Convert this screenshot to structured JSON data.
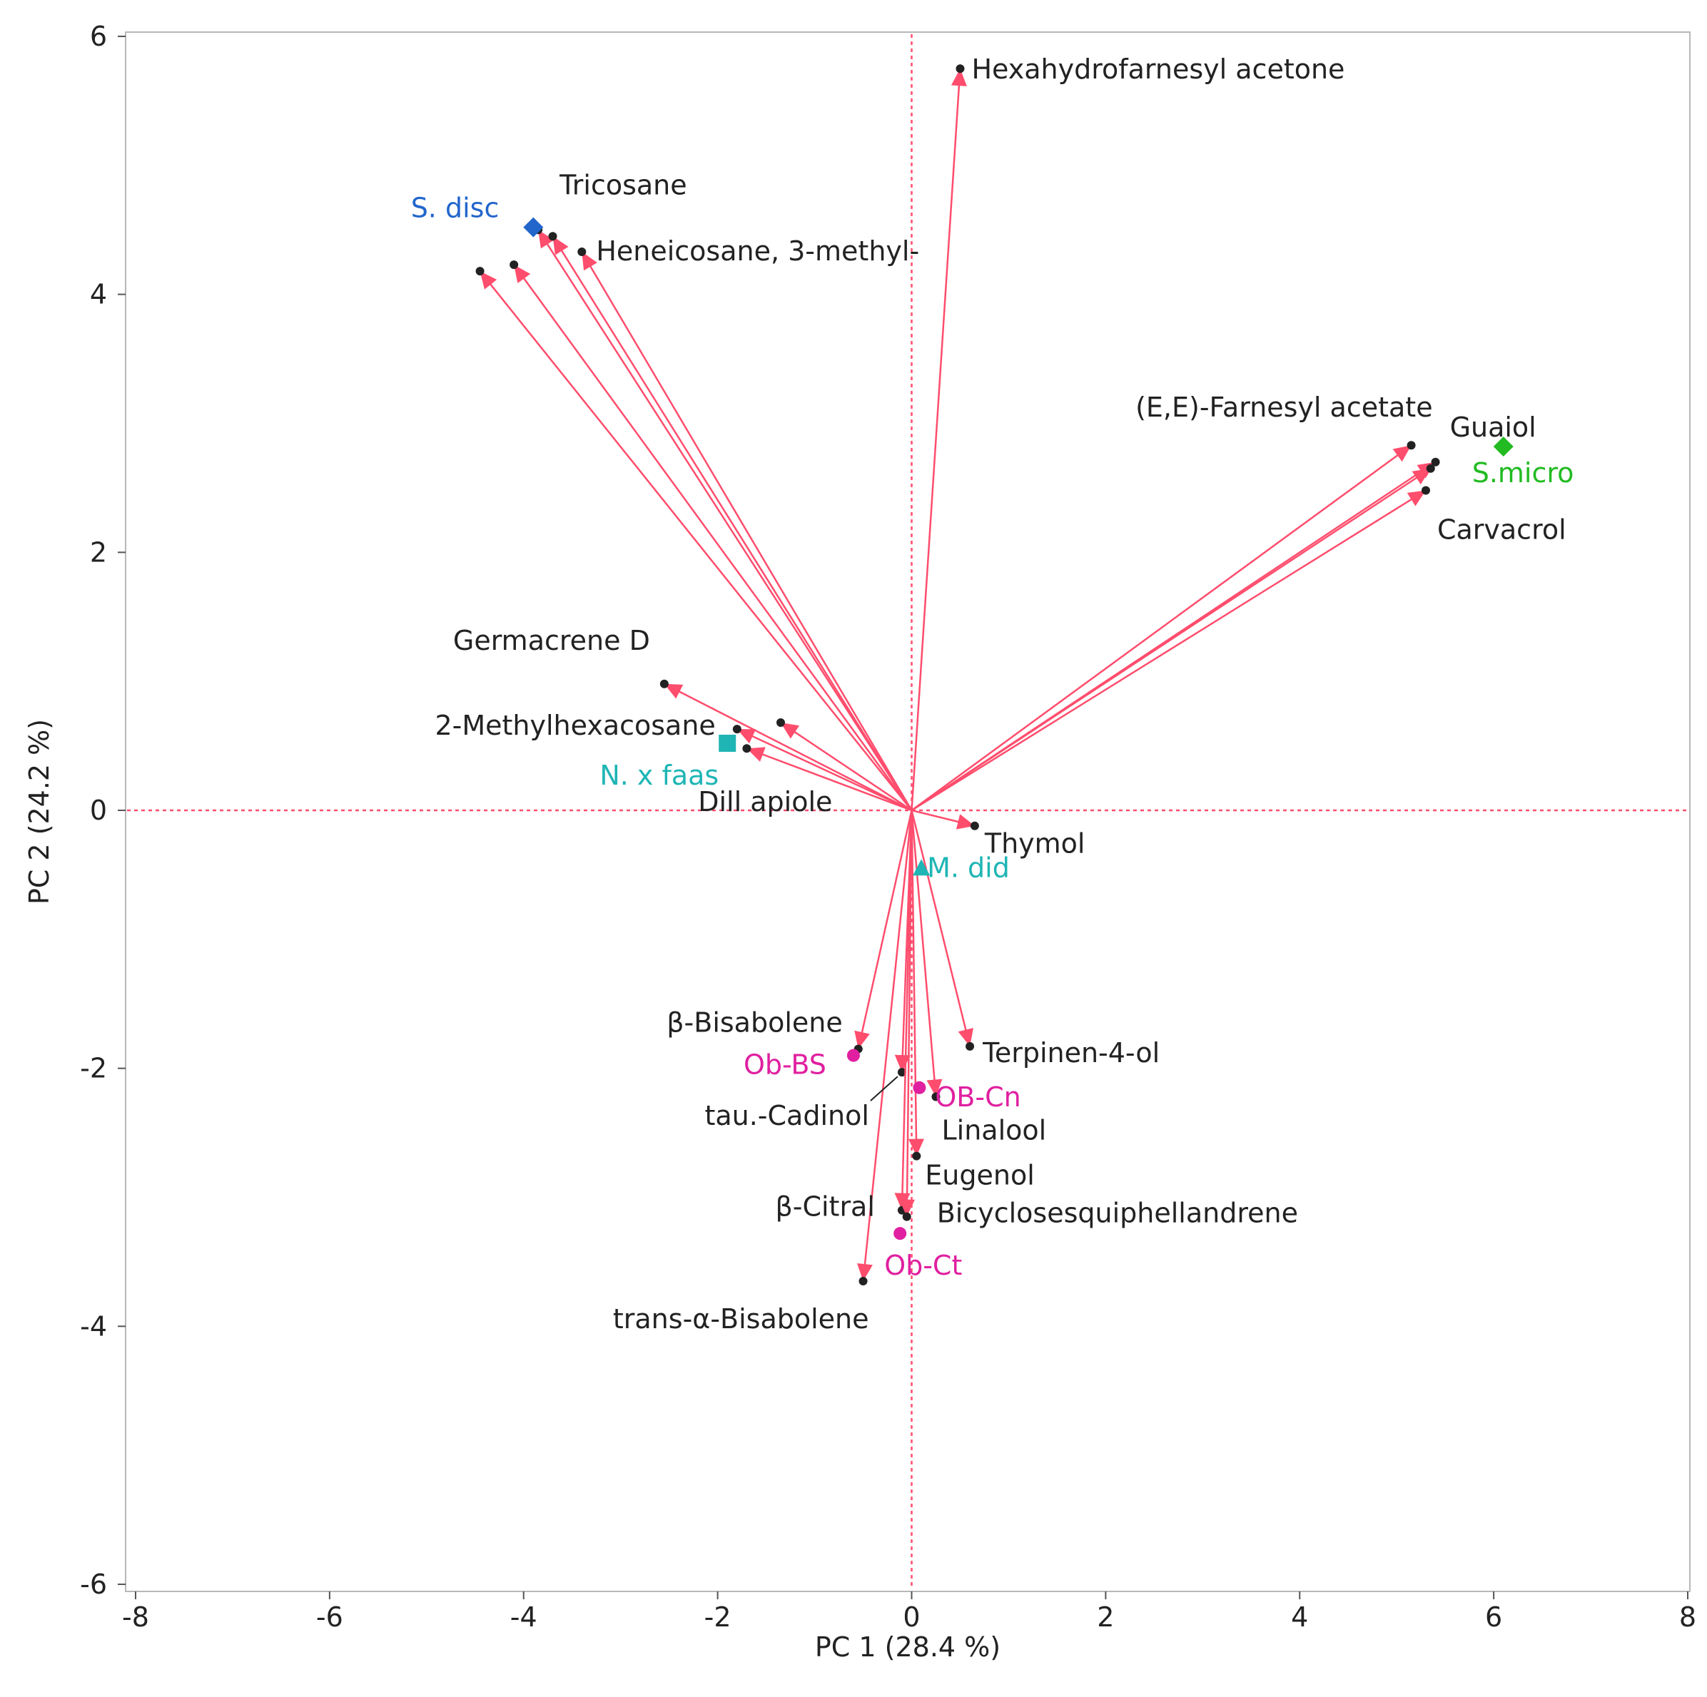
{
  "chart_data": {
    "type": "scatter",
    "subtype": "pca-biplot",
    "title": "",
    "xlabel": "PC 1  (28.4 %)",
    "ylabel": "PC 2  (24.2 %)",
    "xlim": [
      -8,
      8
    ],
    "ylim": [
      -6,
      6
    ],
    "xticks": [
      -8,
      -6,
      -4,
      -2,
      0,
      2,
      4,
      6,
      8
    ],
    "yticks": [
      -6,
      -4,
      -2,
      0,
      2,
      4,
      6
    ],
    "grid": false,
    "reference_lines": {
      "x": 0,
      "y": 0,
      "style": "dotted",
      "color": "#ff4d6d"
    },
    "arrow_color": "#ff4d6d",
    "loadings": [
      {
        "label": "Hexahydrofarnesyl acetone",
        "x": 0.5,
        "y": 5.75
      },
      {
        "label": "Tricosane",
        "x": -3.85,
        "y": 4.5
      },
      {
        "label": "",
        "x": -3.7,
        "y": 4.45
      },
      {
        "label": "Heneicosane, 3-methyl-",
        "x": -3.4,
        "y": 4.33
      },
      {
        "label": "",
        "x": -4.1,
        "y": 4.23
      },
      {
        "label": "",
        "x": -4.45,
        "y": 4.18
      },
      {
        "label": "(E,E)-Farnesyl acetate",
        "x": 5.15,
        "y": 2.83
      },
      {
        "label": "Guaiol",
        "x": 5.4,
        "y": 2.7
      },
      {
        "label": "",
        "x": 5.35,
        "y": 2.65
      },
      {
        "label": "Carvacrol",
        "x": 5.3,
        "y": 2.48
      },
      {
        "label": "Germacrene D",
        "x": -2.55,
        "y": 0.98
      },
      {
        "label": "",
        "x": -1.35,
        "y": 0.68
      },
      {
        "label": "2-Methylhexacosane",
        "x": -1.8,
        "y": 0.63
      },
      {
        "label": "Dill apiole",
        "x": -1.7,
        "y": 0.48
      },
      {
        "label": "Thymol",
        "x": 0.65,
        "y": -0.12
      },
      {
        "label": "β-Bisabolene",
        "x": -0.55,
        "y": -1.85
      },
      {
        "label": "Terpinen-4-ol",
        "x": 0.6,
        "y": -1.83
      },
      {
        "label": "tau.-Cadinol",
        "x": -0.1,
        "y": -2.03
      },
      {
        "label": "Linalool",
        "x": 0.25,
        "y": -2.22
      },
      {
        "label": "Eugenol",
        "x": 0.05,
        "y": -2.68
      },
      {
        "label": "β-Citral",
        "x": -0.1,
        "y": -3.1
      },
      {
        "label": "Bicyclosesquiphellandrene",
        "x": -0.05,
        "y": -3.15
      },
      {
        "label": "trans-α-Bisabolene",
        "x": -0.5,
        "y": -3.65
      }
    ],
    "samples": [
      {
        "label": "S. disc",
        "x": -3.9,
        "y": 4.52,
        "color": "#2266cc",
        "marker": "diamond"
      },
      {
        "label": "S.micro",
        "x": 6.1,
        "y": 2.82,
        "color": "#22bb22",
        "marker": "diamond"
      },
      {
        "label": "N. x faas",
        "x": -1.9,
        "y": 0.52,
        "color": "#1fb5b5",
        "marker": "square"
      },
      {
        "label": "M. did",
        "x": 0.1,
        "y": -0.45,
        "color": "#1fb5b5",
        "marker": "triangle"
      },
      {
        "label": "Ob-BS",
        "x": -0.6,
        "y": -1.9,
        "color": "#e020a0",
        "marker": "circle"
      },
      {
        "label": "OB-Cn",
        "x": 0.08,
        "y": -2.15,
        "color": "#e020a0",
        "marker": "circle"
      },
      {
        "label": "Ob-Ct",
        "x": -0.12,
        "y": -3.28,
        "color": "#e020a0",
        "marker": "circle"
      }
    ]
  }
}
